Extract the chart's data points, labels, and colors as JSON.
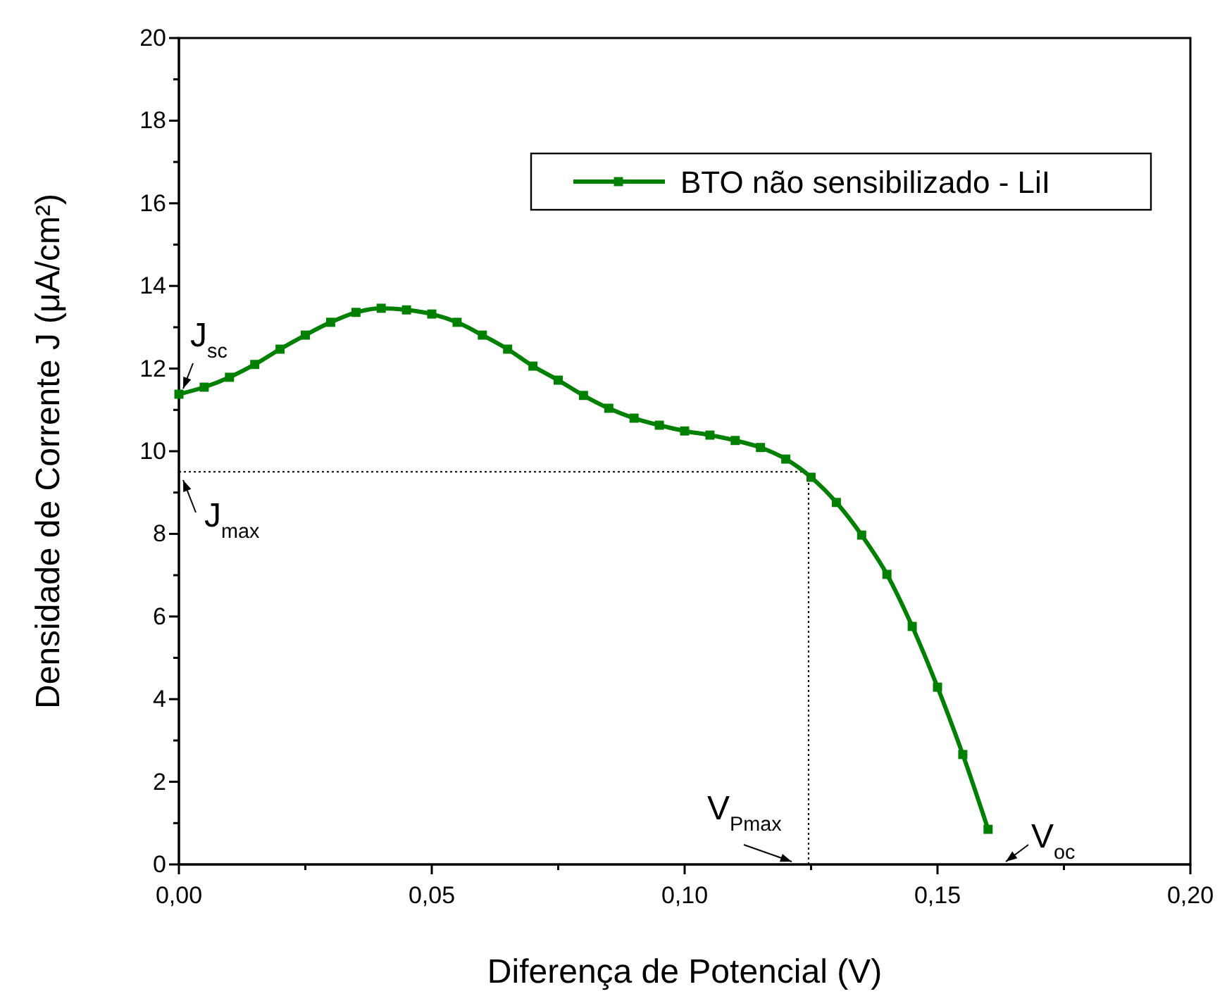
{
  "chart_data": {
    "type": "line",
    "xlabel": "Diferença de Potencial (V)",
    "ylabel": "Densidade de Corrente J (μA/cm²)",
    "x": [
      0,
      0.005,
      0.01,
      0.015,
      0.02,
      0.025,
      0.03,
      0.035,
      0.04,
      0.045,
      0.05,
      0.055,
      0.06,
      0.065,
      0.07,
      0.075,
      0.08,
      0.085,
      0.09,
      0.095,
      0.1,
      0.105,
      0.11,
      0.115,
      0.12,
      0.125,
      0.13,
      0.135,
      0.14,
      0.145,
      0.15,
      0.155,
      0.16
    ],
    "series": [
      {
        "name": "BTO não sensibilizado - LiI",
        "color": "#008000",
        "values": [
          11.38,
          11.55,
          11.79,
          12.1,
          12.47,
          12.81,
          13.12,
          13.36,
          13.46,
          13.42,
          13.32,
          13.12,
          12.81,
          12.47,
          12.06,
          11.72,
          11.35,
          11.04,
          10.8,
          10.63,
          10.49,
          10.39,
          10.26,
          10.09,
          9.81,
          9.37,
          8.76,
          7.97,
          7.02,
          5.76,
          4.29,
          2.66,
          0.85
        ]
      }
    ],
    "marker": "square",
    "line_style": "solid",
    "legend": "top right",
    "grid": false,
    "xlim": [
      0,
      0.2
    ],
    "ylim": [
      0,
      20
    ],
    "xticks": [
      {
        "value": 0,
        "label": "0,00"
      },
      {
        "value": 0.025,
        "label": null
      },
      {
        "value": 0.05,
        "label": "0,05"
      },
      {
        "value": 0.075,
        "label": null
      },
      {
        "value": 0.1,
        "label": "0,10"
      },
      {
        "value": 0.125,
        "label": null
      },
      {
        "value": 0.15,
        "label": "0,15"
      },
      {
        "value": 0.175,
        "label": null
      },
      {
        "value": 0.2,
        "label": "0,20"
      }
    ],
    "yticks": [
      0,
      {
        "value": 1,
        "label": null
      },
      2,
      {
        "value": 3,
        "label": null
      },
      4,
      {
        "value": 5,
        "label": null
      },
      6,
      {
        "value": 7,
        "label": null
      },
      8,
      {
        "value": 9,
        "label": null
      },
      10,
      {
        "value": 11,
        "label": null
      },
      12,
      {
        "value": 13,
        "label": null
      },
      14,
      {
        "value": 15,
        "label": null
      },
      16,
      {
        "value": 17,
        "label": null
      },
      18,
      {
        "value": 19,
        "label": null
      },
      20
    ],
    "ref_lines": [
      {
        "axis": "y",
        "value": 9.5,
        "line_style": "dotted",
        "color": "#000000"
      },
      {
        "axis": "x",
        "value": 0.1245,
        "line_style": "dotted",
        "color": "#000000"
      }
    ],
    "annotations": [
      "J$_{sc}$",
      "J$_{max}$",
      "V$_{Pmax}$",
      "V$_{oc}$"
    ]
  }
}
